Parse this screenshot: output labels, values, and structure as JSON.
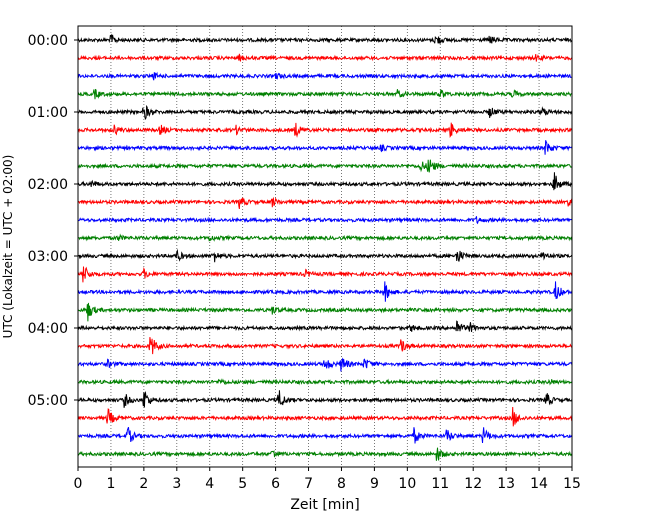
{
  "chart_data": {
    "type": "line",
    "title": "",
    "xlabel": "Zeit  [min]",
    "ylabel": "UTC (Lokalzeit = UTC + 02:00)",
    "xlim": [
      0,
      15
    ],
    "x_ticks": [
      "0",
      "1",
      "2",
      "3",
      "4",
      "5",
      "6",
      "7",
      "8",
      "9",
      "10",
      "11",
      "12",
      "13",
      "14",
      "15"
    ],
    "y_tick_labels": [
      "00:00",
      "01:00",
      "02:00",
      "03:00",
      "04:00",
      "05:00"
    ],
    "y_tick_trace_index": [
      0,
      4,
      8,
      12,
      16,
      20
    ],
    "grid": "vertical dotted at each minute",
    "legend": "none",
    "trace_colors": [
      "#000000",
      "#ff0000",
      "#0000ff",
      "#008000"
    ],
    "traces": [
      {
        "start": "00:00",
        "color": "#000000",
        "events": [
          [
            1.0,
            0.6
          ],
          [
            10.85,
            0.7
          ],
          [
            12.5,
            0.5
          ]
        ]
      },
      {
        "start": "00:15",
        "color": "#ff0000",
        "events": [
          [
            4.9,
            0.3
          ],
          [
            13.9,
            0.3
          ]
        ]
      },
      {
        "start": "00:30",
        "color": "#0000ff",
        "events": [
          [
            2.3,
            0.3
          ],
          [
            6.0,
            0.3
          ]
        ]
      },
      {
        "start": "00:45",
        "color": "#008000",
        "events": [
          [
            0.5,
            0.5
          ],
          [
            9.7,
            0.4
          ],
          [
            11.0,
            0.5
          ],
          [
            13.2,
            0.4
          ]
        ]
      },
      {
        "start": "01:00",
        "color": "#000000",
        "events": [
          [
            2.0,
            1.0
          ],
          [
            12.5,
            0.6
          ],
          [
            14.1,
            0.5
          ]
        ]
      },
      {
        "start": "01:15",
        "color": "#ff0000",
        "events": [
          [
            1.1,
            0.5
          ],
          [
            2.5,
            0.6
          ],
          [
            4.8,
            0.4
          ],
          [
            6.6,
            0.8
          ],
          [
            11.3,
            0.9
          ]
        ]
      },
      {
        "start": "01:30",
        "color": "#0000ff",
        "events": [
          [
            9.2,
            0.3
          ],
          [
            14.2,
            0.9
          ]
        ]
      },
      {
        "start": "01:45",
        "color": "#008000",
        "events": [
          [
            10.4,
            0.6
          ],
          [
            10.65,
            1.1
          ]
        ]
      },
      {
        "start": "02:00",
        "color": "#000000",
        "events": [
          [
            0.4,
            0.4
          ],
          [
            14.45,
            1.3
          ]
        ]
      },
      {
        "start": "02:15",
        "color": "#ff0000",
        "events": [
          [
            4.9,
            0.7
          ],
          [
            5.9,
            0.5
          ],
          [
            14.9,
            0.5
          ]
        ]
      },
      {
        "start": "02:30",
        "color": "#0000ff",
        "events": [
          [
            12.1,
            0.3
          ]
        ]
      },
      {
        "start": "02:45",
        "color": "#008000",
        "events": [
          [
            1.2,
            0.3
          ],
          [
            4.0,
            0.3
          ]
        ]
      },
      {
        "start": "03:00",
        "color": "#000000",
        "events": [
          [
            3.0,
            0.6
          ],
          [
            4.1,
            0.8
          ],
          [
            11.5,
            1.0
          ],
          [
            14.1,
            0.6
          ]
        ]
      },
      {
        "start": "03:15",
        "color": "#ff0000",
        "events": [
          [
            0.15,
            1.2
          ],
          [
            2.0,
            0.5
          ],
          [
            6.9,
            0.4
          ]
        ]
      },
      {
        "start": "03:30",
        "color": "#0000ff",
        "events": [
          [
            9.3,
            1.2
          ],
          [
            14.5,
            1.1
          ]
        ]
      },
      {
        "start": "03:45",
        "color": "#008000",
        "events": [
          [
            0.3,
            1.1
          ],
          [
            5.9,
            0.4
          ]
        ]
      },
      {
        "start": "04:00",
        "color": "#000000",
        "events": [
          [
            10.1,
            0.4
          ],
          [
            11.5,
            0.9
          ],
          [
            11.9,
            0.5
          ]
        ]
      },
      {
        "start": "04:15",
        "color": "#ff0000",
        "events": [
          [
            2.2,
            1.4
          ],
          [
            9.8,
            0.8
          ]
        ]
      },
      {
        "start": "04:30",
        "color": "#0000ff",
        "events": [
          [
            0.9,
            0.4
          ],
          [
            7.5,
            0.9
          ],
          [
            8.0,
            1.0
          ],
          [
            8.7,
            0.7
          ]
        ]
      },
      {
        "start": "04:45",
        "color": "#008000",
        "events": [
          [
            4.3,
            0.3
          ],
          [
            14.3,
            0.3
          ]
        ]
      },
      {
        "start": "05:00",
        "color": "#000000",
        "events": [
          [
            1.4,
            0.8
          ],
          [
            2.0,
            1.3
          ],
          [
            6.1,
            1.2
          ],
          [
            14.2,
            0.9
          ]
        ]
      },
      {
        "start": "05:15",
        "color": "#ff0000",
        "events": [
          [
            0.9,
            1.1
          ],
          [
            13.2,
            1.1
          ]
        ]
      },
      {
        "start": "05:30",
        "color": "#0000ff",
        "events": [
          [
            1.5,
            1.1
          ],
          [
            10.2,
            0.9
          ],
          [
            11.2,
            0.8
          ],
          [
            12.3,
            1.0
          ]
        ]
      },
      {
        "start": "05:45",
        "color": "#008000",
        "events": [
          [
            5.9,
            0.5
          ],
          [
            10.9,
            0.9
          ]
        ]
      }
    ]
  }
}
